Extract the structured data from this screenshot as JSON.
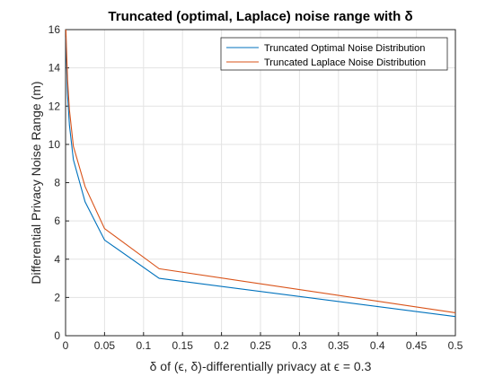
{
  "chart_data": {
    "type": "line",
    "title": "Truncated (optimal, Laplace) noise range with δ",
    "xlabel": "δ of (ϵ, δ)-differentially privacy at ϵ = 0.3",
    "ylabel": "Differential Privacy Noise Range (m)",
    "xlim": [
      0,
      0.5
    ],
    "ylim": [
      0,
      16
    ],
    "x_ticks": [
      "0",
      "0.05",
      "0.1",
      "0.15",
      "0.2",
      "0.25",
      "0.3",
      "0.35",
      "0.4",
      "0.45",
      "0.5"
    ],
    "y_ticks": [
      "0",
      "2",
      "4",
      "6",
      "8",
      "10",
      "12",
      "14",
      "16"
    ],
    "grid": true,
    "legend_position": "top-right",
    "series": [
      {
        "name": "Truncated Optimal Noise Distribution",
        "color": "#0072BD",
        "x": [
          0.0005,
          0.001,
          0.0025,
          0.005,
          0.01,
          0.025,
          0.05,
          0.12,
          0.5
        ],
        "y": [
          15.6,
          14.6,
          12.6,
          11.0,
          9.2,
          7.0,
          5.0,
          3.0,
          1.0
        ]
      },
      {
        "name": "Truncated Laplace Noise Distribution",
        "color": "#D95319",
        "x": [
          0.0005,
          0.001,
          0.0025,
          0.005,
          0.01,
          0.025,
          0.05,
          0.12,
          0.5
        ],
        "y": [
          16.0,
          15.2,
          13.4,
          11.8,
          9.9,
          7.8,
          5.6,
          3.5,
          1.2
        ]
      }
    ]
  }
}
